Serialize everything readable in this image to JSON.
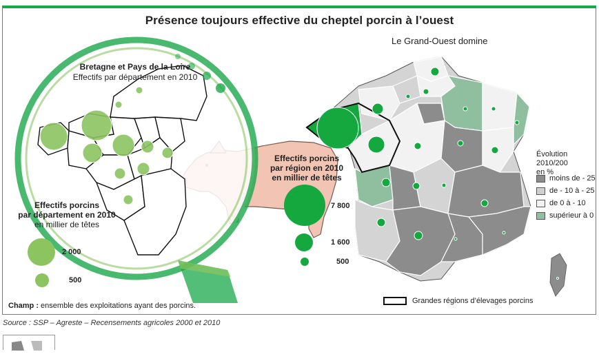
{
  "title": "Présence toujours effective du cheptel porcin à l’ouest",
  "subtitle": "Le Grand-Ouest domine",
  "inset": {
    "title_bold": "Bretagne et Pays de la Loire",
    "title_rest": "Effectifs par département en 2010"
  },
  "dept_legend": {
    "title_line1": "Effectifs porcins",
    "title_line2": "par département en 2010",
    "title_line3": "en millier de têtes",
    "values": [
      "2 000",
      "500"
    ]
  },
  "region_legend": {
    "title_line1": "Effectifs porcins",
    "title_line2": "par région en 2010",
    "title_line3": "en millier de têtes",
    "values": [
      "7 800",
      "1 600",
      "500"
    ]
  },
  "evolution_legend": {
    "title_line1": "Évolution 2010/200",
    "title_line2": "en %",
    "items": [
      {
        "label": "moins de - 25",
        "color": "#8c8c8c"
      },
      {
        "label": "de - 10 à - 25",
        "color": "#cfcfcf"
      },
      {
        "label": "de 0 à - 10",
        "color": "#f2f2f2"
      },
      {
        "label": "supérieur à 0",
        "color": "#8fbf9f"
      }
    ]
  },
  "boundary_legend": "Grandes régions d’élevages porcins",
  "note_bold": "Champ :",
  "note_rest": " ensemble des exploitations ayant des porcins.",
  "source": "Source : SSP – Agreste – Recensements agricoles 2000 et 2010",
  "colors": {
    "green_dark": "#14a83f",
    "green_light": "#8cc460",
    "pig": "#f2c4b4",
    "accent": "#1aa84a"
  }
}
